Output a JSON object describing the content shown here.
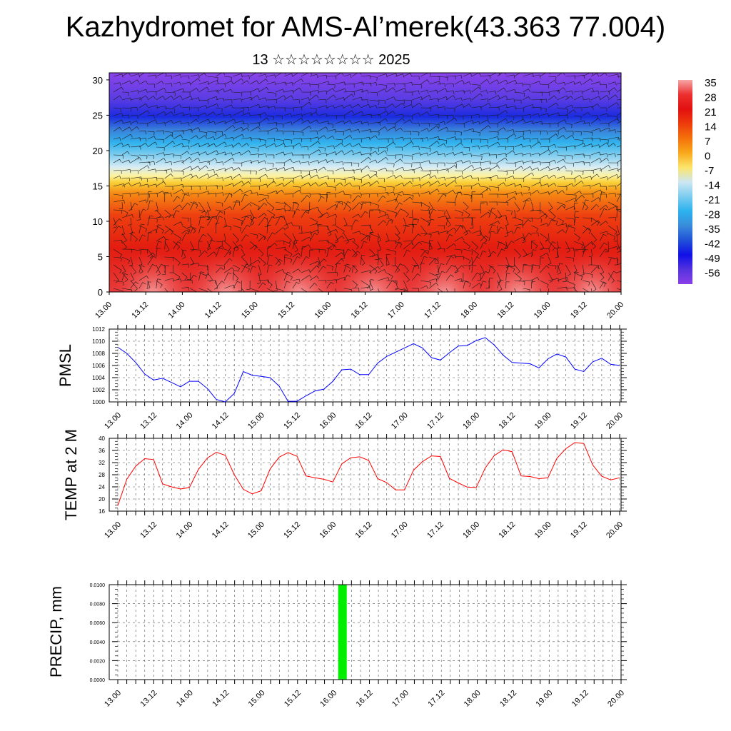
{
  "title": "Kazhydromet for AMS-Al’merek(43.363 77.004)",
  "subtitle": "13 ☆☆☆☆☆☆☆☆ 2025",
  "chart_data": [
    {
      "type": "heatmap",
      "name": "vertical temperature and wind cross-section",
      "x_ticks": [
        "13.00",
        "13.12",
        "14.00",
        "14.12",
        "15.00",
        "15.12",
        "16.00",
        "16.12",
        "17.00",
        "17.12",
        "18.00",
        "18.12",
        "19.00",
        "19.12",
        "20.00"
      ],
      "y_ticks": [
        0,
        5,
        10,
        15,
        20,
        25,
        30
      ],
      "ylim": [
        0,
        31
      ],
      "colorbar": {
        "labels": [
          "35",
          "28",
          "21",
          "14",
          "7",
          "0",
          "-7",
          "-14",
          "-21",
          "-28",
          "-35",
          "-42",
          "-49",
          "-56"
        ],
        "colors": [
          "#f6a6a6",
          "#ec3030",
          "#e31010",
          "#ee3b0c",
          "#f4720a",
          "#f9a81a",
          "#fce56c",
          "#cde7f3",
          "#7cccef",
          "#2bb2ee",
          "#3a8bdb",
          "#2050d8",
          "#1010e8",
          "#5533dd",
          "#8a3fe8"
        ]
      },
      "grid": false
    },
    {
      "type": "line",
      "ylabel": "PMSL",
      "x_ticks": [
        "13.00",
        "13.12",
        "14.00",
        "14.12",
        "15.00",
        "15.12",
        "16.00",
        "16.12",
        "17.00",
        "17.12",
        "18.00",
        "18.12",
        "19.00",
        "19.12",
        "20.00"
      ],
      "ylim": [
        1000,
        1012
      ],
      "y_ticks": [
        "1000",
        "1002",
        "1004",
        "1006",
        "1008",
        "1010",
        "1012"
      ],
      "color": "#0000ff",
      "grid": true,
      "values": [
        1009.0,
        1008.0,
        1006.5,
        1004.6,
        1003.6,
        1003.9,
        1003.2,
        1002.5,
        1003.4,
        1003.4,
        1002.2,
        1000.4,
        1000.0,
        1001.4,
        1005.0,
        1004.4,
        1004.2,
        1004.0,
        1002.6,
        1000.1,
        1000.1,
        1001.0,
        1001.8,
        1002.1,
        1003.4,
        1005.3,
        1005.4,
        1004.5,
        1004.5,
        1006.4,
        1007.5,
        1008.2,
        1008.9,
        1009.6,
        1008.9,
        1007.3,
        1006.9,
        1008.1,
        1009.2,
        1009.3,
        1010.1,
        1010.6,
        1009.4,
        1007.7,
        1006.5,
        1006.4,
        1006.3,
        1005.6,
        1007.1,
        1007.9,
        1007.4,
        1005.4,
        1005.0,
        1006.6,
        1007.2,
        1006.2,
        1006.0
      ]
    },
    {
      "type": "line",
      "ylabel": "TEMP at 2 M",
      "x_ticks": [
        "13.00",
        "13.12",
        "14.00",
        "14.12",
        "15.00",
        "15.12",
        "16.00",
        "16.12",
        "17.00",
        "17.12",
        "18.00",
        "18.12",
        "19.00",
        "19.12",
        "20.00"
      ],
      "ylim": [
        16,
        40
      ],
      "y_ticks": [
        "16",
        "20",
        "24",
        "28",
        "32",
        "36",
        "40"
      ],
      "color": "#ff0000",
      "grid": true,
      "values": [
        17.8,
        26.5,
        30.8,
        33.3,
        33.0,
        25.0,
        24.0,
        23.3,
        23.8,
        29.8,
        33.5,
        35.4,
        34.4,
        28.0,
        23.2,
        21.7,
        22.7,
        29.9,
        33.8,
        35.3,
        34.1,
        27.6,
        27.0,
        26.5,
        25.6,
        31.6,
        33.6,
        33.9,
        32.7,
        26.7,
        25.4,
        23.0,
        23.0,
        29.5,
        32.3,
        34.2,
        34.0,
        26.8,
        25.3,
        23.9,
        23.8,
        30.2,
        34.3,
        36.2,
        35.6,
        27.6,
        27.4,
        26.7,
        27.0,
        33.4,
        36.6,
        38.6,
        38.3,
        31.2,
        27.5,
        26.3,
        27.0
      ]
    },
    {
      "type": "bar",
      "ylabel": "PRECIP, mm",
      "x_ticks": [
        "13.00",
        "13.12",
        "14.00",
        "14.12",
        "15.00",
        "15.12",
        "16.00",
        "16.12",
        "17.00",
        "17.12",
        "18.00",
        "18.12",
        "19.00",
        "19.12",
        "20.00"
      ],
      "ylim": [
        0,
        0.01
      ],
      "y_ticks": [
        "0.0000",
        "0.0020",
        "0.0040",
        "0.0060",
        "0.0080",
        "0.0100"
      ],
      "color": "#00ee00",
      "grid": true,
      "bars": [
        {
          "x_hours": 75,
          "value": 0.01
        }
      ]
    }
  ]
}
